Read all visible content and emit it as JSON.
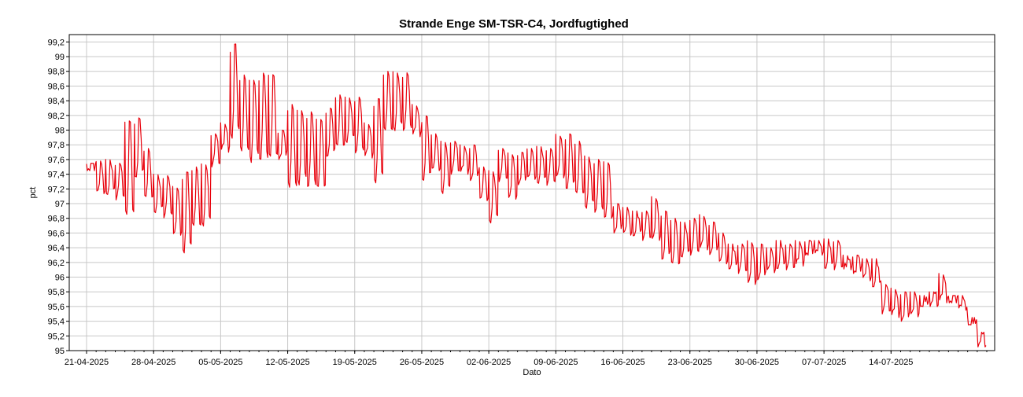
{
  "chart_data": {
    "type": "line",
    "title": "Strande Enge SM-TSR-C4, Jordfugtighed",
    "xlabel": "Dato",
    "ylabel": "pct",
    "ylim": [
      95,
      99.3
    ],
    "xlim": [
      "2025-04-21",
      "2025-07-24"
    ],
    "grid": true,
    "y_ticks": [
      "95",
      "95,2",
      "95,4",
      "95,6",
      "95,8",
      "96",
      "96,2",
      "96,4",
      "96,6",
      "96,8",
      "97",
      "97,2",
      "97,4",
      "97,6",
      "97,8",
      "98",
      "98,2",
      "98,4",
      "98,6",
      "98,8",
      "99",
      "99,2"
    ],
    "x_ticks": [
      "21-04-2025",
      "28-04-2025",
      "05-05-2025",
      "12-05-2025",
      "19-05-2025",
      "26-05-2025",
      "02-06-2025",
      "09-06-2025",
      "16-06-2025",
      "23-06-2025",
      "30-06-2025",
      "07-07-2025",
      "14-07-2025"
    ],
    "series": [
      {
        "color": "#e8000b",
        "x": [
          "2025-04-21",
          "2025-04-22",
          "2025-04-23",
          "2025-04-24",
          "2025-04-25",
          "2025-04-26",
          "2025-04-27",
          "2025-04-28",
          "2025-04-29",
          "2025-04-30",
          "2025-05-01",
          "2025-05-02",
          "2025-05-03",
          "2025-05-04",
          "2025-05-05",
          "2025-05-06",
          "2025-05-07",
          "2025-05-08",
          "2025-05-09",
          "2025-05-10",
          "2025-05-11",
          "2025-05-12",
          "2025-05-13",
          "2025-05-14",
          "2025-05-15",
          "2025-05-16",
          "2025-05-17",
          "2025-05-18",
          "2025-05-19",
          "2025-05-20",
          "2025-05-21",
          "2025-05-22",
          "2025-05-23",
          "2025-05-24",
          "2025-05-25",
          "2025-05-26",
          "2025-05-27",
          "2025-05-28",
          "2025-05-29",
          "2025-05-30",
          "2025-05-31",
          "2025-06-01",
          "2025-06-02",
          "2025-06-03",
          "2025-06-04",
          "2025-06-05",
          "2025-06-06",
          "2025-06-07",
          "2025-06-08",
          "2025-06-09",
          "2025-06-10",
          "2025-06-11",
          "2025-06-12",
          "2025-06-13",
          "2025-06-14",
          "2025-06-15",
          "2025-06-16",
          "2025-06-17",
          "2025-06-18",
          "2025-06-19",
          "2025-06-20",
          "2025-06-21",
          "2025-06-22",
          "2025-06-23",
          "2025-06-24",
          "2025-06-25",
          "2025-06-26",
          "2025-06-27",
          "2025-06-28",
          "2025-06-29",
          "2025-06-30",
          "2025-07-01",
          "2025-07-02",
          "2025-07-03",
          "2025-07-04",
          "2025-07-05",
          "2025-07-06",
          "2025-07-07",
          "2025-07-08",
          "2025-07-09",
          "2025-07-10",
          "2025-07-11",
          "2025-07-12",
          "2025-07-13",
          "2025-07-14",
          "2025-07-15",
          "2025-07-16",
          "2025-07-17",
          "2025-07-18",
          "2025-07-19",
          "2025-07-20",
          "2025-07-21",
          "2025-07-22",
          "2025-07-23"
        ],
        "high": [
          97.55,
          97.58,
          97.6,
          97.55,
          98.2,
          98.17,
          97.75,
          97.4,
          97.38,
          97.25,
          97.45,
          97.5,
          97.55,
          97.95,
          98.1,
          99.2,
          98.75,
          98.72,
          98.78,
          98.82,
          98.0,
          98.35,
          98.3,
          98.25,
          98.2,
          98.3,
          98.48,
          98.45,
          98.45,
          98.1,
          98.45,
          98.8,
          98.8,
          98.78,
          98.35,
          98.2,
          97.95,
          97.85,
          97.85,
          97.8,
          97.8,
          97.5,
          97.45,
          97.75,
          97.7,
          97.7,
          97.75,
          97.78,
          97.75,
          97.95,
          97.95,
          97.85,
          97.65,
          97.6,
          97.6,
          97.0,
          96.95,
          96.9,
          96.9,
          97.1,
          96.9,
          96.8,
          96.75,
          96.8,
          96.85,
          96.75,
          96.6,
          96.45,
          96.45,
          96.5,
          96.45,
          96.4,
          96.5,
          96.45,
          96.5,
          96.5,
          96.5,
          96.52,
          96.5,
          96.3,
          96.3,
          96.25,
          96.25,
          95.9,
          95.85,
          95.8,
          95.8,
          95.75,
          95.8,
          96.05,
          95.75,
          95.75,
          95.45,
          95.25
        ],
        "low": [
          97.45,
          97.1,
          97.1,
          97.05,
          96.7,
          97.3,
          97.0,
          96.85,
          96.8,
          96.5,
          96.25,
          96.6,
          96.65,
          97.5,
          97.7,
          97.8,
          97.6,
          97.5,
          97.5,
          97.5,
          97.6,
          97.1,
          97.2,
          97.15,
          97.1,
          97.6,
          97.7,
          97.8,
          97.65,
          97.6,
          97.2,
          97.9,
          97.95,
          97.95,
          97.9,
          97.25,
          97.4,
          97.1,
          97.4,
          97.4,
          97.3,
          97.0,
          96.7,
          97.3,
          97.0,
          97.25,
          97.3,
          97.25,
          97.25,
          97.3,
          97.15,
          97.05,
          96.9,
          96.85,
          96.7,
          96.6,
          96.55,
          96.55,
          96.5,
          96.45,
          96.2,
          96.1,
          96.25,
          96.3,
          96.35,
          96.3,
          96.15,
          96.1,
          96.05,
          95.85,
          95.95,
          96.05,
          96.1,
          96.1,
          96.15,
          96.3,
          96.3,
          96.1,
          96.1,
          96.1,
          96.05,
          95.95,
          95.85,
          95.5,
          95.45,
          95.4,
          95.45,
          95.6,
          95.6,
          95.65,
          95.65,
          95.55,
          95.35,
          95.05
        ]
      }
    ]
  }
}
